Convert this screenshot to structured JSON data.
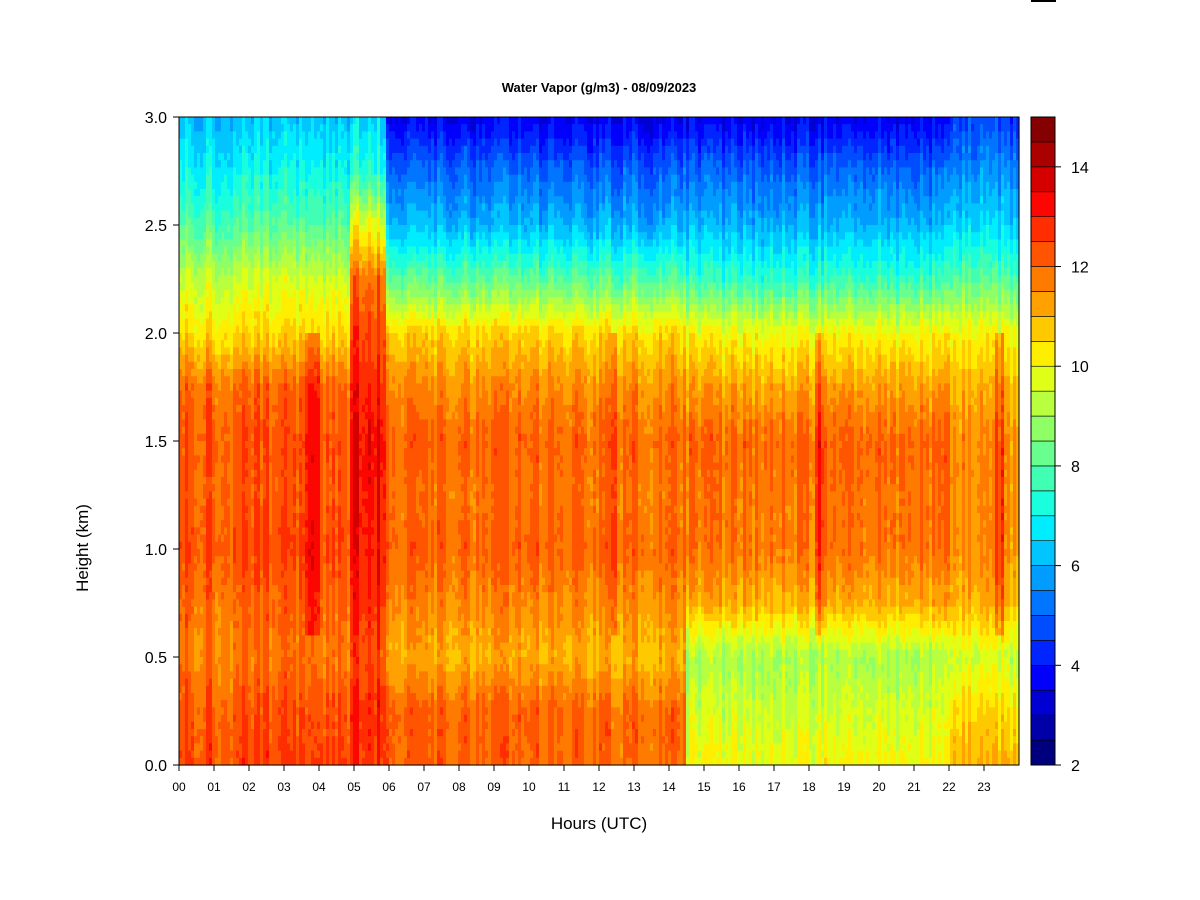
{
  "chart_data": {
    "type": "heatmap",
    "title": "Water Vapor (g/m3) - 08/09/2023",
    "xlabel": "Hours (UTC)",
    "ylabel": "Height (km)",
    "xlim": [
      0,
      24
    ],
    "ylim": [
      0,
      3
    ],
    "x_ticks": [
      "00",
      "01",
      "02",
      "03",
      "04",
      "05",
      "06",
      "07",
      "08",
      "09",
      "10",
      "11",
      "12",
      "13",
      "14",
      "15",
      "16",
      "17",
      "18",
      "19",
      "20",
      "21",
      "22",
      "23"
    ],
    "y_ticks": [
      "0.0",
      "0.5",
      "1.0",
      "1.5",
      "2.0",
      "2.5",
      "3.0"
    ],
    "colorbar": {
      "min": 2,
      "max": 15,
      "ticks": [
        "2",
        "4",
        "6",
        "8",
        "10",
        "12",
        "14"
      ],
      "levels": 26,
      "colors": [
        "#00007f",
        "#0000a8",
        "#0000d2",
        "#0000fb",
        "#0025ff",
        "#004cff",
        "#0075ff",
        "#009cff",
        "#00c5ff",
        "#00ecff",
        "#19ffdd",
        "#40ffb5",
        "#68ff8e",
        "#8fff66",
        "#b8ff3f",
        "#dfff17",
        "#ffee00",
        "#ffc900",
        "#ffa100",
        "#ff7b00",
        "#ff5400",
        "#ff2e00",
        "#fb0600",
        "#d40000",
        "#ab0000",
        "#850000"
      ]
    },
    "description_profiles": {
      "height_km": [
        0.0,
        0.25,
        0.5,
        0.75,
        1.0,
        1.25,
        1.5,
        1.75,
        2.0,
        2.25,
        2.5,
        2.75,
        3.0
      ],
      "hour_00_to_04": [
        12.5,
        12.3,
        11.8,
        12.0,
        12.4,
        12.2,
        12.3,
        12.0,
        10.5,
        9.5,
        8.0,
        7.0,
        6.2
      ],
      "hour_05_to_06": [
        12.8,
        13.0,
        12.5,
        13.0,
        13.2,
        13.3,
        13.4,
        13.0,
        12.6,
        12.0,
        10.0,
        7.5,
        6.5
      ],
      "hour_07_to_14": [
        12.0,
        12.0,
        11.0,
        11.5,
        12.0,
        11.8,
        12.0,
        11.5,
        10.5,
        8.0,
        6.0,
        5.0,
        3.5
      ],
      "hour_15_to_21": [
        10.0,
        9.5,
        9.0,
        11.0,
        11.8,
        11.8,
        12.0,
        11.2,
        10.0,
        7.5,
        6.0,
        5.0,
        3.5
      ],
      "hour_22_to_24": [
        11.0,
        10.5,
        9.5,
        11.0,
        11.5,
        11.5,
        11.5,
        11.0,
        10.0,
        8.0,
        6.5,
        5.5,
        4.5
      ]
    }
  }
}
